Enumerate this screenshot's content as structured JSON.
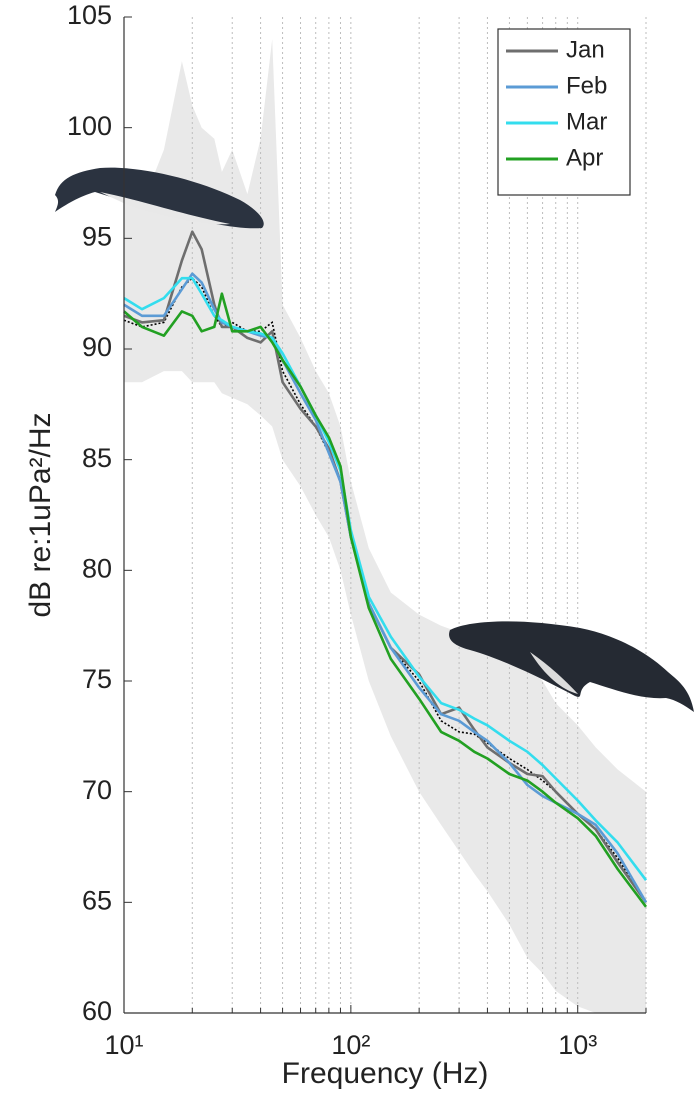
{
  "chart_data": {
    "type": "line",
    "xlabel": "Frequency (Hz)",
    "ylabel": "dB re:1uPa²/Hz",
    "xscale": "log",
    "xlim": [
      10,
      2000
    ],
    "ylim": [
      60,
      105
    ],
    "xticks": [
      {
        "value": 10,
        "label": "10¹"
      },
      {
        "value": 100,
        "label": "10²"
      },
      {
        "value": 1000,
        "label": "10³"
      }
    ],
    "xminorticks": [
      20,
      30,
      40,
      50,
      60,
      70,
      80,
      90,
      200,
      300,
      400,
      500,
      600,
      700,
      800,
      900,
      2000
    ],
    "yticks": [
      60,
      65,
      70,
      75,
      80,
      85,
      90,
      95,
      100,
      105
    ],
    "grid": true,
    "legend": "upper right",
    "x": [
      10,
      12,
      15,
      18,
      20,
      22,
      25,
      27,
      30,
      35,
      40,
      45,
      50,
      60,
      70,
      80,
      90,
      100,
      120,
      150,
      200,
      250,
      300,
      350,
      400,
      500,
      600,
      700,
      800,
      1000,
      1200,
      1500,
      2000
    ],
    "range": {
      "color": "#e9e9e9",
      "upper": [
        97,
        96.5,
        99,
        103,
        101,
        100,
        99.5,
        98,
        99,
        97,
        99.5,
        104,
        92,
        90.5,
        89,
        88,
        86.5,
        84,
        81,
        79,
        78,
        77.5,
        77.2,
        76.8,
        76.5,
        76,
        75.8,
        75,
        74,
        73,
        72,
        71,
        70
      ],
      "lower": [
        88.5,
        88.5,
        89,
        89,
        88.5,
        88.5,
        88.5,
        88,
        87.8,
        87.5,
        87,
        86.5,
        85,
        83.8,
        82.5,
        81.5,
        80,
        78,
        75,
        72.5,
        70,
        68.5,
        67.3,
        66.3,
        65.5,
        64,
        62.5,
        61.8,
        61,
        60.3,
        60,
        60,
        60
      ]
    },
    "reference": {
      "color": "#000000",
      "values": [
        91.3,
        91,
        91.2,
        92.8,
        93.2,
        92.8,
        91.5,
        91,
        91.2,
        90.8,
        90.8,
        91.2,
        89,
        87.5,
        86.5,
        85.3,
        84,
        81.5,
        78.5,
        76.5,
        75,
        73.2,
        72.7,
        72.6,
        72.2,
        71.5,
        71,
        70.5,
        70,
        69,
        68.3,
        67,
        65
      ]
    },
    "series": [
      {
        "name": "Jan",
        "color": "#6e6e6e",
        "values": [
          91.5,
          91.2,
          91.3,
          94,
          95.3,
          94.5,
          92,
          91,
          91,
          90.5,
          90.3,
          90.8,
          88.5,
          87.3,
          86.5,
          85.5,
          84,
          81.5,
          78.5,
          76.5,
          75.3,
          73.5,
          73.8,
          72.8,
          72,
          71.3,
          70.8,
          70.7,
          70,
          69,
          68.3,
          66.8,
          65
        ]
      },
      {
        "name": "Feb",
        "color": "#5b9bd5",
        "values": [
          92,
          91.5,
          91.5,
          92.7,
          93.4,
          93,
          91.8,
          91.2,
          91,
          90.8,
          90.6,
          90.5,
          89.5,
          88,
          86.8,
          85.3,
          84,
          81.5,
          78.5,
          76.5,
          74.7,
          73.5,
          73.2,
          72.7,
          72.3,
          71.3,
          70.3,
          69.8,
          69.5,
          69,
          68.5,
          67.2,
          65
        ]
      },
      {
        "name": "Mar",
        "color": "#33ddee",
        "values": [
          92.3,
          91.8,
          92.3,
          93.2,
          93.2,
          92.5,
          91.5,
          91.3,
          91,
          90.8,
          90.7,
          90.5,
          89.8,
          88.3,
          87,
          85.8,
          84.5,
          81.8,
          78.8,
          77,
          75.2,
          74,
          73.7,
          73.3,
          73,
          72.3,
          71.8,
          71.2,
          70.6,
          69.6,
          68.7,
          67.7,
          66
        ]
      },
      {
        "name": "Apr",
        "color": "#22a022",
        "values": [
          91.7,
          91,
          90.6,
          91.7,
          91.5,
          90.8,
          91,
          92.5,
          90.8,
          90.8,
          91,
          90.3,
          89.5,
          88.3,
          87,
          86,
          84.7,
          81.5,
          78.3,
          76,
          74.2,
          72.7,
          72.3,
          71.8,
          71.5,
          70.8,
          70.5,
          70,
          69.5,
          68.8,
          68,
          66.5,
          64.8
        ]
      }
    ]
  }
}
